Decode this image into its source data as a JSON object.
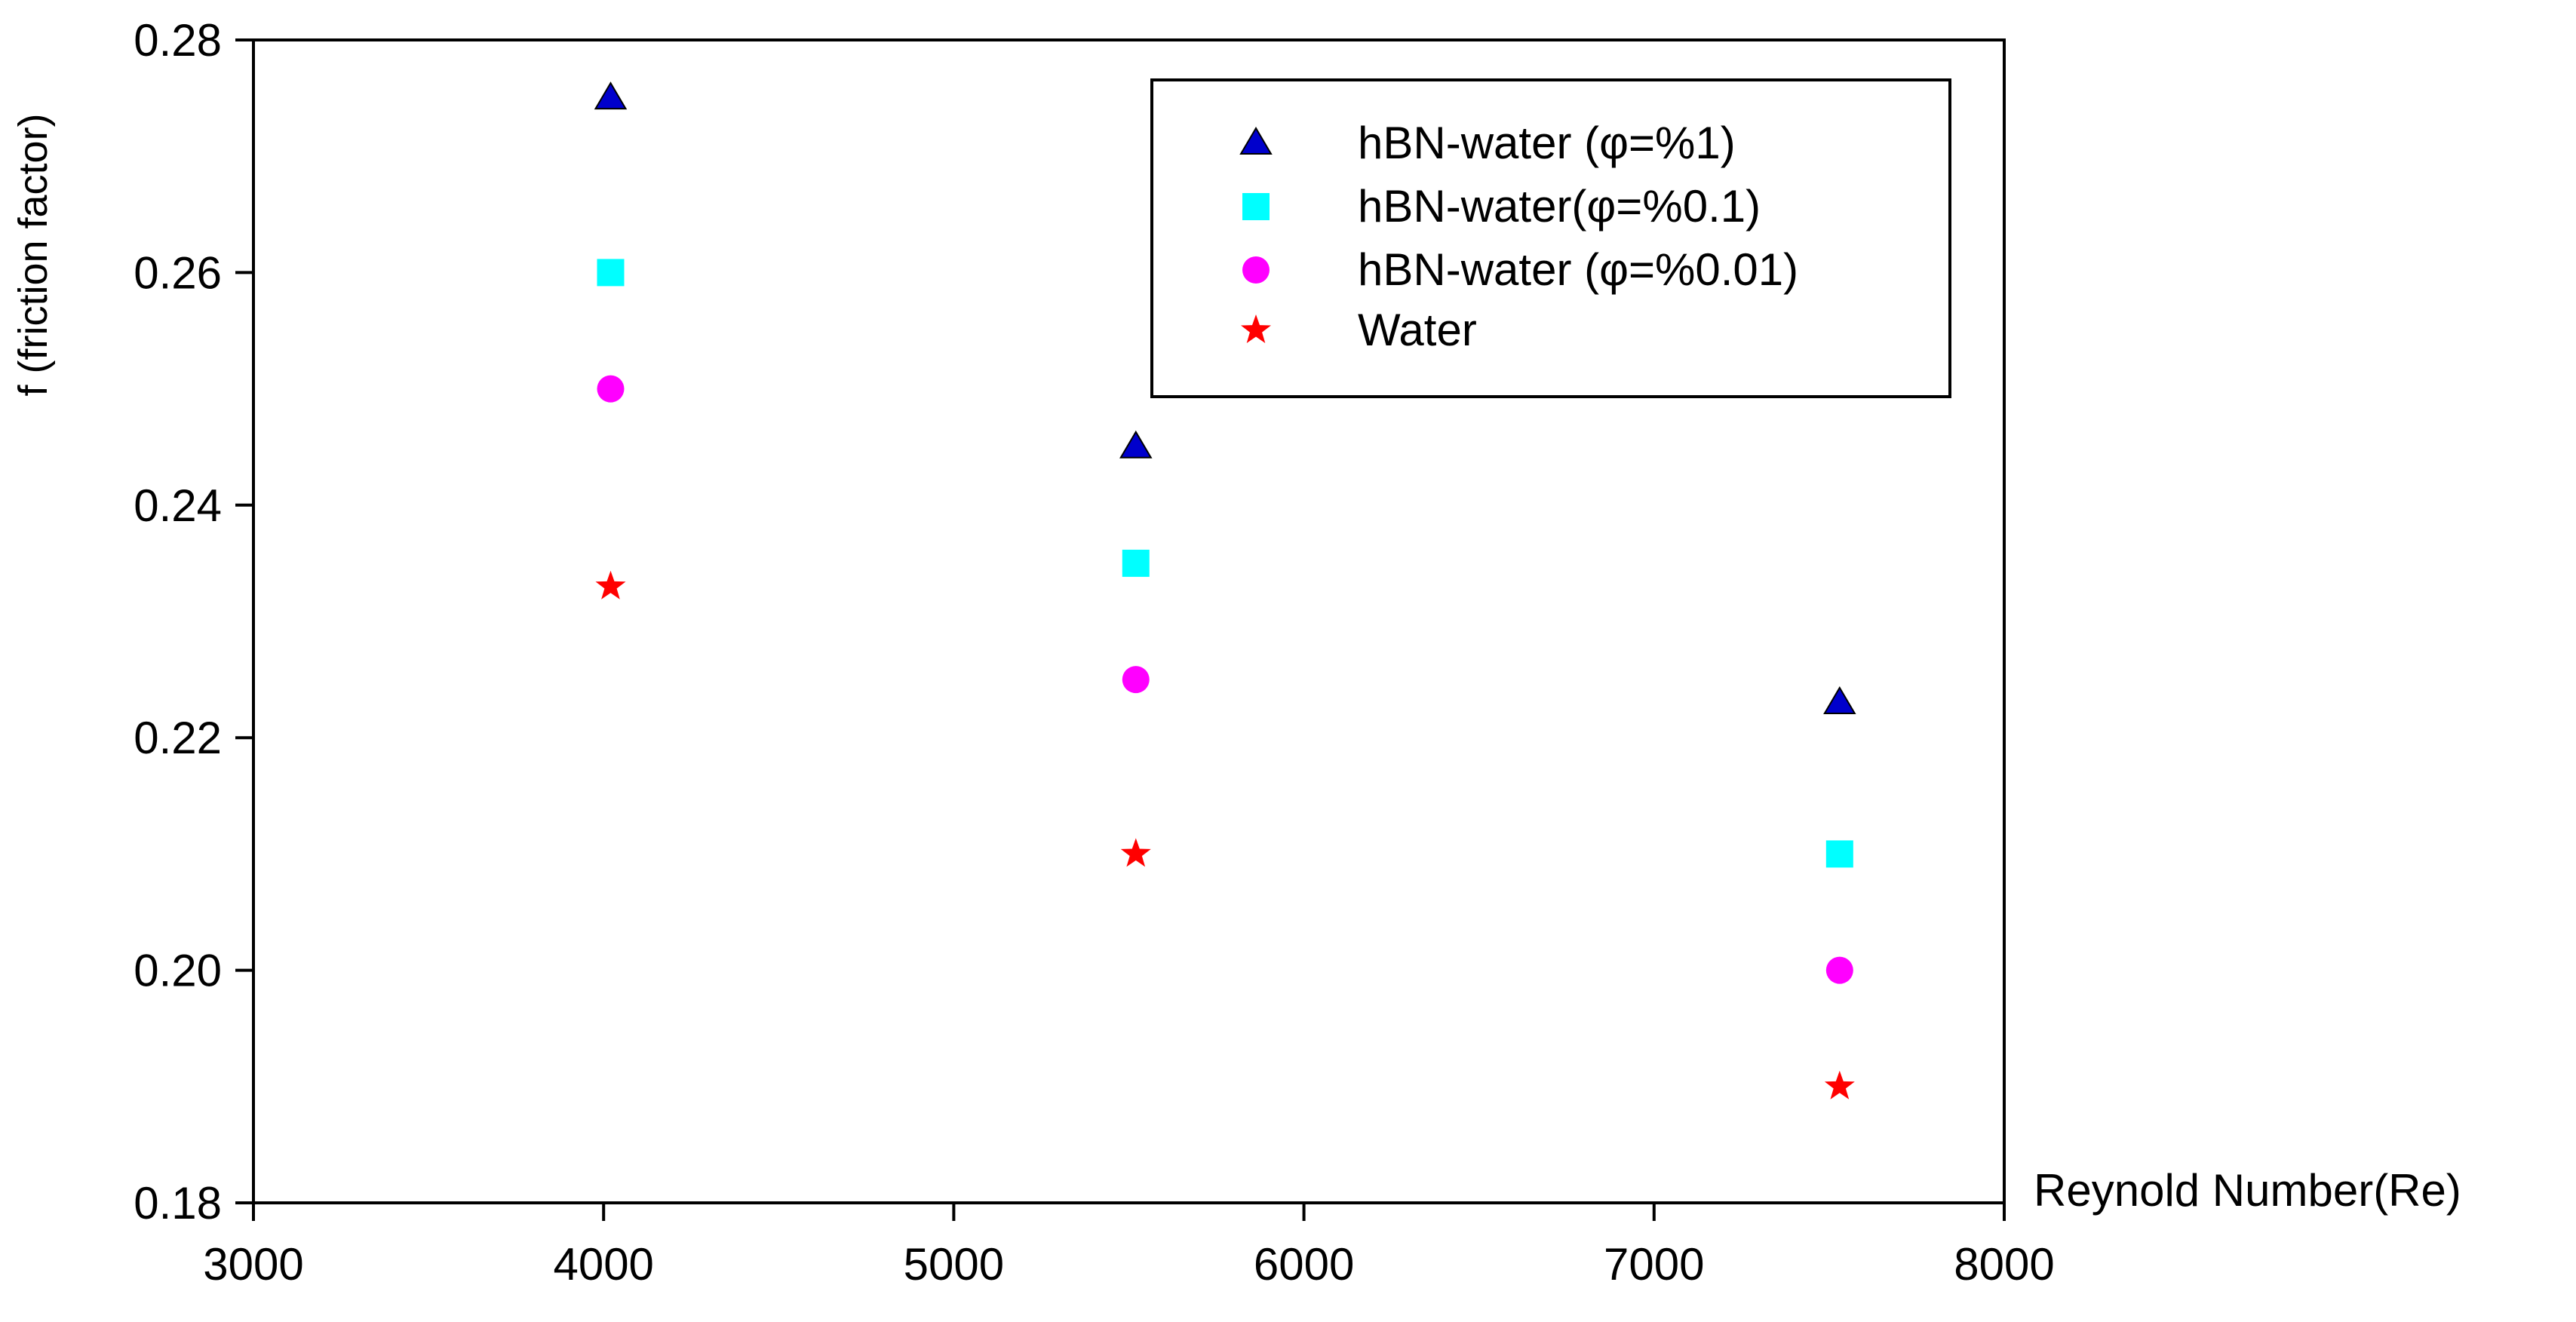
{
  "chart_data": {
    "type": "scatter",
    "title": "",
    "xlabel": "Reynold Number(Re)",
    "ylabel": "f (friction factor)",
    "xlim": [
      3000,
      8000
    ],
    "ylim": [
      0.18,
      0.28
    ],
    "xticks": [
      3000,
      4000,
      5000,
      6000,
      7000,
      8000
    ],
    "xtick_labels": [
      "3000",
      "4000",
      "5000",
      "6000",
      "7000",
      "8000"
    ],
    "yticks": [
      0.18,
      0.2,
      0.22,
      0.24,
      0.26,
      0.28
    ],
    "ytick_labels": [
      "0.18",
      "0.20",
      "0.22",
      "0.24",
      "0.26",
      "0.28"
    ],
    "grid": false,
    "legend_position": "top-right",
    "series": [
      {
        "name": "hBN-water (φ=%1)",
        "marker": "triangle",
        "color": "#0000cc",
        "x": [
          4020,
          5520,
          7530
        ],
        "y": [
          0.275,
          0.245,
          0.223
        ]
      },
      {
        "name": "hBN-water(φ=%0.1)",
        "marker": "square",
        "color": "#00ffff",
        "x": [
          4020,
          5520,
          7530
        ],
        "y": [
          0.26,
          0.235,
          0.21
        ]
      },
      {
        "name": "hBN-water (φ=%0.01)",
        "marker": "circle",
        "color": "#ff00ff",
        "x": [
          4020,
          5520,
          7530
        ],
        "y": [
          0.25,
          0.225,
          0.2
        ]
      },
      {
        "name": "Water",
        "marker": "star",
        "color": "#ff0000",
        "x": [
          4020,
          5520,
          7530
        ],
        "y": [
          0.233,
          0.21,
          0.19
        ]
      }
    ]
  }
}
